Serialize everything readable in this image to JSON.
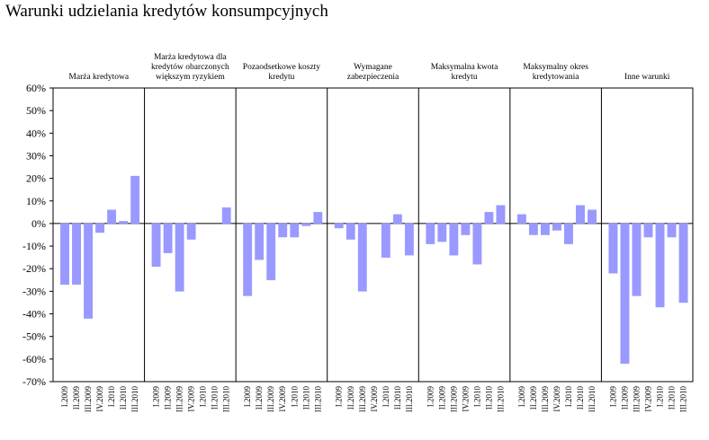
{
  "title": "Warunki udzielania kredytów konsumpcyjnych",
  "chart_data": {
    "type": "bar",
    "title": "Warunki udzielania kredytów konsumpcyjnych",
    "ylim": [
      -70,
      60
    ],
    "yticks": [
      60,
      50,
      40,
      30,
      20,
      10,
      0,
      -10,
      -20,
      -30,
      -40,
      -50,
      -60,
      -70
    ],
    "ytick_labels": [
      "60%",
      "50%",
      "40%",
      "30%",
      "20%",
      "10%",
      "0%",
      "-10%",
      "-20%",
      "-30%",
      "-40%",
      "-50%",
      "-60%",
      "-70%"
    ],
    "categories": [
      "I.2009",
      "II.2009",
      "III.2009",
      "IV.2009",
      "I.2010",
      "II.2010",
      "III.2010"
    ],
    "bar_color": "#9999ff",
    "grid": false,
    "panels": [
      {
        "label_lines": [
          "Marża kredytowa"
        ],
        "values": [
          -27,
          -27,
          -42,
          -4,
          6,
          1,
          21
        ]
      },
      {
        "label_lines": [
          "Marża kredytowa dla",
          "kredytów obarczonych",
          "większym ryzykiem"
        ],
        "values": [
          -19,
          -13,
          -30,
          -7,
          null,
          null,
          7
        ]
      },
      {
        "label_lines": [
          "Pozaodsetkowe koszty",
          "kredytu"
        ],
        "values": [
          -32,
          -16,
          -25,
          -6,
          -6,
          -1,
          5
        ]
      },
      {
        "label_lines": [
          "Wymagane",
          "zabezpieczenia"
        ],
        "values": [
          -2,
          -7,
          -30,
          null,
          -15,
          4,
          -14
        ]
      },
      {
        "label_lines": [
          "Maksymalna kwota",
          "kredytu"
        ],
        "values": [
          -9,
          -8,
          -14,
          -5,
          -18,
          5,
          8
        ]
      },
      {
        "label_lines": [
          "Maksymalny okres",
          "kredytowania"
        ],
        "values": [
          4,
          -5,
          -5,
          -3,
          -9,
          8,
          6
        ]
      },
      {
        "label_lines": [
          "Inne warunki"
        ],
        "values": [
          -22,
          -62,
          -32,
          -6,
          -37,
          -6,
          -35
        ]
      }
    ]
  }
}
